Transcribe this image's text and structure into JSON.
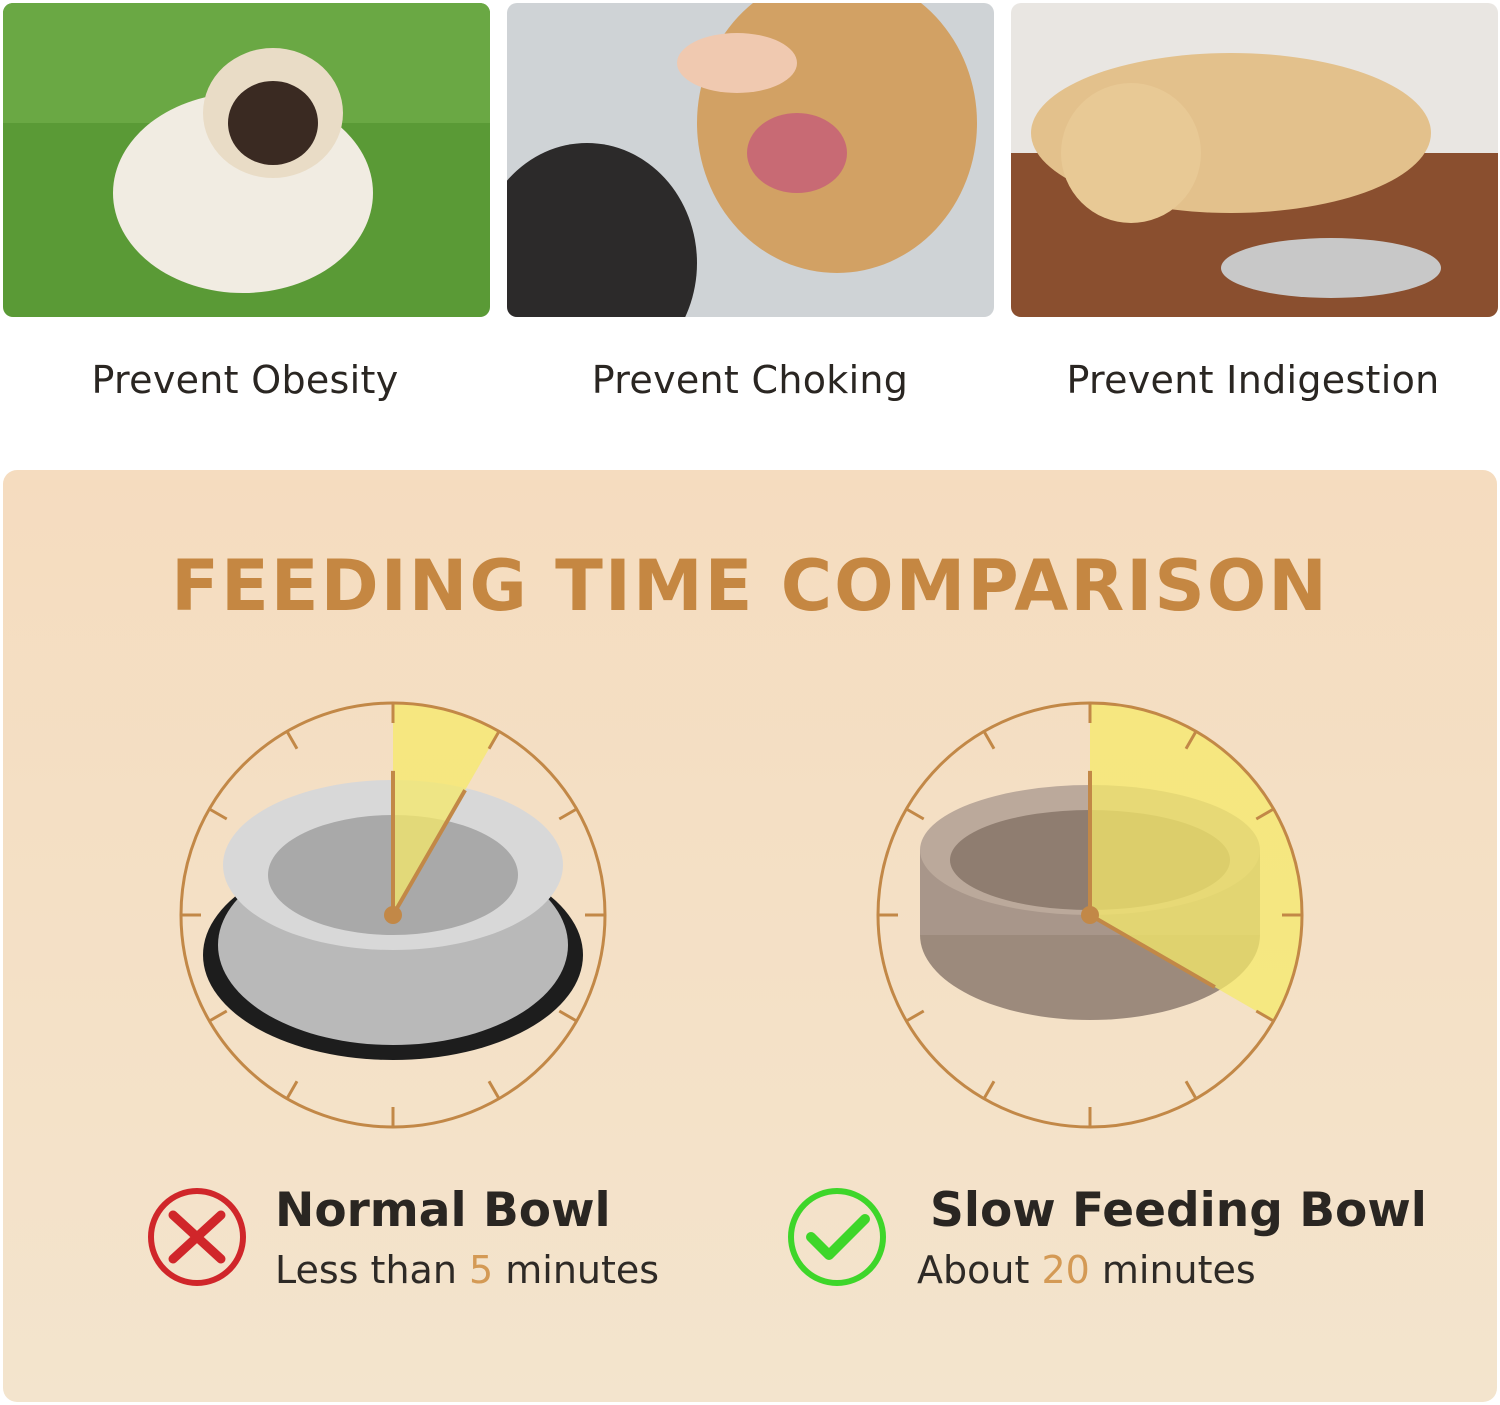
{
  "photos": [
    {
      "caption": "Prevent Obesity",
      "icon": "pug-photo"
    },
    {
      "caption": "Prevent Choking",
      "icon": "dog-mouth-photo"
    },
    {
      "caption": "Prevent Indigestion",
      "icon": "dog-lying-bowl-photo"
    }
  ],
  "comparison": {
    "title": "FEEDING TIME COMPARISON",
    "clock_max_minutes": 60,
    "items": [
      {
        "name": "Normal Bowl",
        "prefix": "Less than ",
        "value": "5",
        "suffix": " minutes",
        "minutes": 5,
        "status": "x-icon",
        "status_color": "#d0262a"
      },
      {
        "name": "Slow Feeding Bowl",
        "prefix": "About ",
        "value": "20",
        "suffix": " minutes",
        "minutes": 20,
        "status": "check-icon",
        "status_color": "#3ed62a"
      }
    ]
  },
  "colors": {
    "accent": "#c58742",
    "dial": "#c28847",
    "wedge": "#f5ea6a",
    "panel": "#f5dfc4"
  }
}
